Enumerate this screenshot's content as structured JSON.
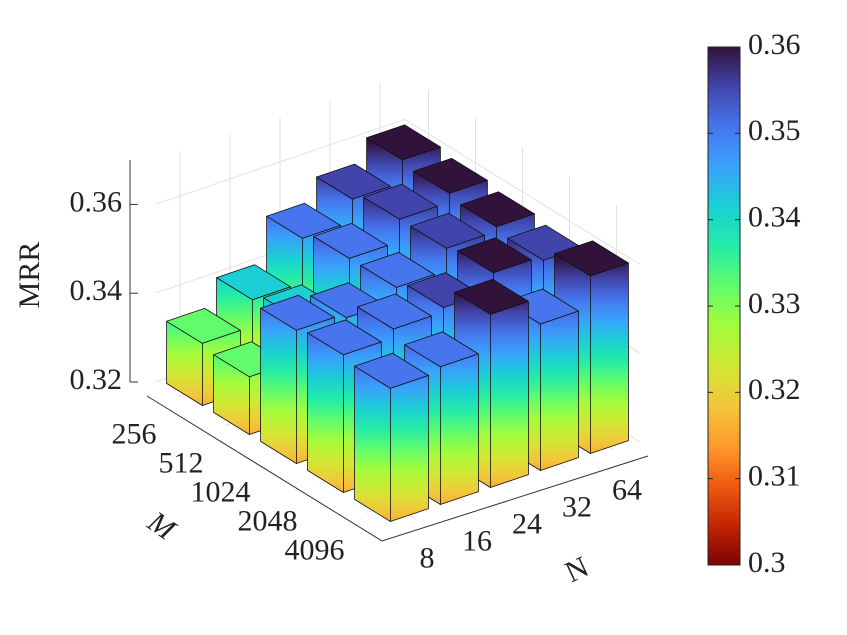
{
  "chart_data": {
    "type": "bar3d",
    "xlabel": "N",
    "ylabel": "M",
    "zlabel": "MRR",
    "x_categories": [
      "8",
      "16",
      "24",
      "32",
      "64"
    ],
    "y_categories": [
      "256",
      "512",
      "1024",
      "2048",
      "4096"
    ],
    "values": [
      [
        0.334,
        0.34,
        0.35,
        0.355,
        0.36
      ],
      [
        0.333,
        0.342,
        0.352,
        0.357,
        0.359
      ],
      [
        0.35,
        0.349,
        0.352,
        0.357,
        0.358
      ],
      [
        0.351,
        0.353,
        0.354,
        0.358,
        0.357
      ],
      [
        0.35,
        0.351,
        0.359,
        0.353,
        0.36
      ]
    ],
    "zlim": [
      0.32,
      0.37
    ],
    "zticks": [
      0.32,
      0.34,
      0.36
    ],
    "grid": true,
    "colormap": "turbo",
    "clim": [
      0.3,
      0.36
    ],
    "cticks": [
      0.3,
      0.31,
      0.32,
      0.33,
      0.34,
      0.35,
      0.36
    ]
  }
}
